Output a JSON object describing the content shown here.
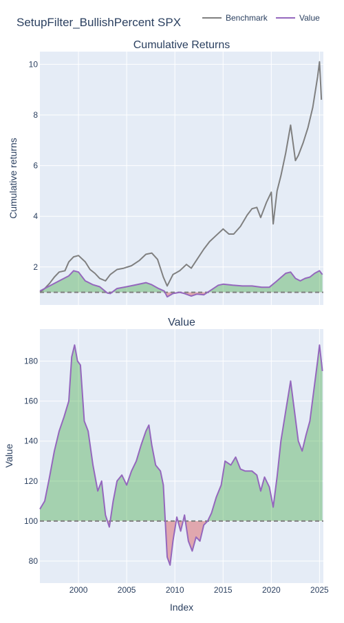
{
  "title": "SetupFilter_BullishPercent SPX",
  "legend": [
    {
      "label": "Benchmark",
      "color": "#7f7f7f"
    },
    {
      "label": "Value",
      "color": "#9467bd"
    }
  ],
  "colors": {
    "plot_bg": "#e5ecf6",
    "grid": "#ffffff",
    "benchmark": "#7f7f7f",
    "value": "#9467bd",
    "fill_up": "rgba(44,160,44,0.35)",
    "fill_down": "rgba(214,39,40,0.35)",
    "baseline": "#7f7f7f"
  },
  "chart_data": [
    {
      "type": "line",
      "title": "Cumulative Returns",
      "ylabel": "Cumulative returns",
      "xlabel": "",
      "xlim": [
        1996.0,
        2025.4
      ],
      "ylim": [
        0.5,
        10.5
      ],
      "yticks": [
        2,
        4,
        6,
        8,
        10
      ],
      "xticks": [
        2000,
        2005,
        2010,
        2015,
        2020,
        2025
      ],
      "baseline": 1,
      "series": [
        {
          "name": "Benchmark",
          "x": [
            1996.0,
            1996.5,
            1997.0,
            1997.5,
            1998.0,
            1998.6,
            1999.0,
            1999.5,
            2000.0,
            2000.7,
            2001.2,
            2001.7,
            2002.2,
            2002.8,
            2003.3,
            2004.0,
            2004.7,
            2005.5,
            2006.3,
            2007.0,
            2007.6,
            2008.2,
            2008.8,
            2009.2,
            2009.8,
            2010.5,
            2011.2,
            2011.7,
            2012.3,
            2013.0,
            2013.6,
            2014.3,
            2015.0,
            2015.6,
            2016.1,
            2016.8,
            2017.5,
            2018.0,
            2018.5,
            2018.9,
            2019.5,
            2020.0,
            2020.2,
            2020.6,
            2021.0,
            2021.5,
            2022.0,
            2022.5,
            2022.8,
            2023.3,
            2023.8,
            2024.3,
            2024.8,
            2025.0,
            2025.2
          ],
          "values": [
            1.0,
            1.15,
            1.35,
            1.6,
            1.8,
            1.85,
            2.2,
            2.4,
            2.45,
            2.2,
            1.9,
            1.75,
            1.55,
            1.45,
            1.7,
            1.9,
            1.95,
            2.05,
            2.25,
            2.5,
            2.55,
            2.3,
            1.6,
            1.25,
            1.7,
            1.85,
            2.1,
            1.95,
            2.3,
            2.7,
            3.0,
            3.25,
            3.5,
            3.3,
            3.3,
            3.6,
            4.05,
            4.3,
            4.35,
            3.95,
            4.55,
            4.95,
            3.7,
            5.0,
            5.6,
            6.5,
            7.6,
            6.2,
            6.4,
            6.9,
            7.5,
            8.3,
            9.5,
            10.1,
            8.6
          ]
        },
        {
          "name": "Value",
          "x": [
            1996.0,
            1997.0,
            1998.0,
            1999.0,
            1999.5,
            2000.0,
            2000.7,
            2001.5,
            2002.2,
            2003.0,
            2003.3,
            2004.0,
            2005.0,
            2006.0,
            2007.0,
            2007.6,
            2008.3,
            2008.9,
            2009.2,
            2009.8,
            2010.5,
            2011.0,
            2011.7,
            2012.3,
            2013.0,
            2013.8,
            2014.5,
            2015.0,
            2016.0,
            2017.0,
            2018.0,
            2019.0,
            2019.8,
            2020.5,
            2021.5,
            2022.0,
            2022.5,
            2023.0,
            2023.5,
            2024.0,
            2024.5,
            2025.0,
            2025.3
          ],
          "values": [
            1.05,
            1.25,
            1.45,
            1.65,
            1.85,
            1.8,
            1.45,
            1.3,
            1.22,
            0.97,
            0.95,
            1.15,
            1.22,
            1.3,
            1.38,
            1.3,
            1.15,
            1.05,
            0.82,
            0.95,
            1.0,
            0.95,
            0.85,
            0.93,
            0.9,
            1.1,
            1.28,
            1.32,
            1.28,
            1.25,
            1.25,
            1.2,
            1.2,
            1.42,
            1.75,
            1.8,
            1.55,
            1.45,
            1.55,
            1.6,
            1.75,
            1.85,
            1.7
          ]
        }
      ]
    },
    {
      "type": "area",
      "title": "Value",
      "ylabel": "Value",
      "xlabel": "Index",
      "xlim": [
        1996.0,
        2025.4
      ],
      "ylim": [
        69,
        196
      ],
      "yticks": [
        80,
        100,
        120,
        140,
        160,
        180
      ],
      "xticks": [
        2000,
        2005,
        2010,
        2015,
        2020,
        2025
      ],
      "baseline": 100,
      "series": [
        {
          "name": "Value",
          "x": [
            1996.0,
            1996.5,
            1997.0,
            1997.5,
            1998.0,
            1998.5,
            1999.0,
            1999.3,
            1999.6,
            1999.9,
            2000.2,
            2000.6,
            2001.0,
            2001.5,
            2002.0,
            2002.4,
            2002.8,
            2003.2,
            2003.6,
            2004.0,
            2004.5,
            2005.0,
            2005.5,
            2006.0,
            2006.5,
            2007.0,
            2007.3,
            2007.6,
            2008.0,
            2008.5,
            2008.8,
            2009.2,
            2009.5,
            2009.8,
            2010.2,
            2010.6,
            2011.0,
            2011.4,
            2011.8,
            2012.2,
            2012.6,
            2013.0,
            2013.4,
            2013.8,
            2014.3,
            2014.8,
            2015.2,
            2015.8,
            2016.3,
            2016.8,
            2017.3,
            2018.0,
            2018.5,
            2018.9,
            2019.3,
            2019.8,
            2020.2,
            2020.6,
            2021.0,
            2021.5,
            2022.0,
            2022.4,
            2022.8,
            2023.2,
            2023.6,
            2024.0,
            2024.4,
            2024.8,
            2025.0,
            2025.3
          ],
          "values": [
            106,
            110,
            122,
            135,
            145,
            152,
            160,
            182,
            188,
            180,
            178,
            150,
            145,
            128,
            115,
            120,
            103,
            97,
            110,
            120,
            123,
            118,
            125,
            130,
            138,
            145,
            148,
            138,
            128,
            125,
            118,
            82,
            78,
            90,
            102,
            95,
            103,
            90,
            85,
            92,
            90,
            98,
            100,
            104,
            112,
            118,
            130,
            128,
            132,
            126,
            125,
            125,
            123,
            115,
            122,
            117,
            107,
            122,
            140,
            155,
            170,
            155,
            140,
            135,
            143,
            150,
            165,
            180,
            188,
            175
          ]
        }
      ]
    }
  ]
}
